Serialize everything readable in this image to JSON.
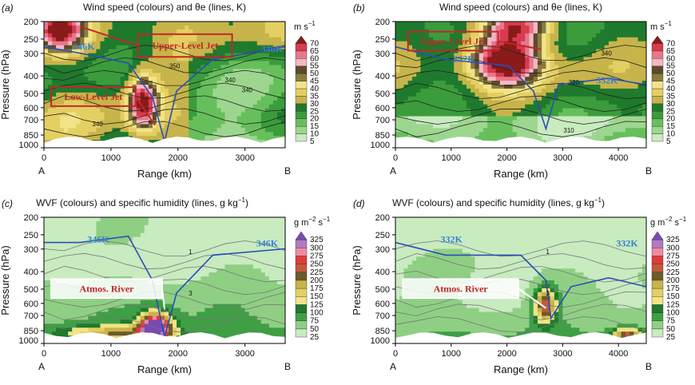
{
  "chart_data": [
    {
      "type": "heatmap",
      "panel_label": "(a)",
      "title": "Wind speed (colours) and θe (lines, K)",
      "xlabel": "Range (km)",
      "ylabel": "Pressure (hPa)",
      "xlim": [
        0,
        3600
      ],
      "x_ticks": [
        0,
        1000,
        2000,
        3000
      ],
      "ylim": [
        1000,
        200
      ],
      "y_ticks": [
        200,
        250,
        300,
        400,
        500,
        600,
        700,
        850,
        1000
      ],
      "y_scale": "log",
      "endpoints": [
        "A",
        "B"
      ],
      "colorbar": {
        "unit": "m s",
        "unit_exp": "−1",
        "levels": [
          5,
          10,
          15,
          20,
          25,
          30,
          35,
          40,
          45,
          50,
          55,
          60,
          65,
          70
        ]
      },
      "contour_labels": [
        "346K",
        "346K",
        "340",
        "340",
        "340",
        "350"
      ],
      "annotations": [
        "Upper-Level Jet",
        "Low-Level Jet"
      ]
    },
    {
      "type": "heatmap",
      "panel_label": "(b)",
      "title": "Wind speed (colours) and θe (lines, K)",
      "xlabel": "Range (km)",
      "ylabel": "Pressure (hPa)",
      "xlim": [
        0,
        4500
      ],
      "x_ticks": [
        0,
        1000,
        2000,
        3000,
        4000
      ],
      "ylim": [
        1000,
        200
      ],
      "y_ticks": [
        200,
        250,
        300,
        400,
        500,
        600,
        700,
        850,
        1000
      ],
      "y_scale": "log",
      "endpoints": [
        "A",
        "B"
      ],
      "colorbar": {
        "unit": "m s",
        "unit_exp": "−1",
        "levels": [
          5,
          10,
          15,
          20,
          25,
          30,
          35,
          40,
          45,
          50,
          55,
          60,
          65,
          70
        ]
      },
      "contour_labels": [
        "332K",
        "332K",
        "340",
        "320",
        "310"
      ],
      "annotations": [
        "Upper-Level Jet"
      ]
    },
    {
      "type": "heatmap",
      "panel_label": "(c)",
      "title": "WVF (colours) and specific humidity (lines, g kg",
      "title_exp": "−1",
      "xlabel": "Range (km)",
      "ylabel": "Pressure (hPa)",
      "xlim": [
        0,
        3600
      ],
      "x_ticks": [
        0,
        1000,
        2000,
        3000
      ],
      "ylim": [
        1000,
        200
      ],
      "y_ticks": [
        200,
        250,
        300,
        400,
        500,
        600,
        700,
        850,
        1000
      ],
      "y_scale": "log",
      "endpoints": [
        "A",
        "B"
      ],
      "colorbar": {
        "unit": "g m",
        "unit_exp": "−2",
        "unit_tail": " s",
        "unit_tail_exp": "−1",
        "levels": [
          25,
          50,
          75,
          100,
          125,
          150,
          175,
          200,
          225,
          250,
          275,
          300,
          325
        ]
      },
      "contour_labels": [
        "346K",
        "346K",
        "1",
        "3"
      ],
      "annotations": [
        "Atmos. River"
      ]
    },
    {
      "type": "heatmap",
      "panel_label": "(d)",
      "title": "WVF (colours) and specific humidity (lines, g kg",
      "title_exp": "−1",
      "xlabel": "Range (km)",
      "ylabel": "Pressure (hPa)",
      "xlim": [
        0,
        4500
      ],
      "x_ticks": [
        0,
        1000,
        2000,
        3000,
        4000
      ],
      "ylim": [
        1000,
        200
      ],
      "y_ticks": [
        200,
        250,
        300,
        400,
        500,
        600,
        700,
        850,
        1000
      ],
      "y_scale": "log",
      "endpoints": [
        "A",
        "B"
      ],
      "colorbar": {
        "unit": "g m",
        "unit_exp": "−2",
        "unit_tail": " s",
        "unit_tail_exp": "−1",
        "levels": [
          25,
          50,
          75,
          100,
          125,
          150,
          175,
          200,
          225,
          250,
          275,
          300,
          325
        ]
      },
      "contour_labels": [
        "332K",
        "332K",
        "1",
        "3"
      ],
      "annotations": [
        "Atmos. River"
      ]
    }
  ],
  "colors": {
    "wind_scale": [
      "#c8ebc0",
      "#9dd68f",
      "#67bf5c",
      "#3b9c3b",
      "#1f7a2d",
      "#c7b44a",
      "#e4cf63",
      "#f2e486",
      "#8a7b3f",
      "#5c4a2b",
      "#f3b8c3",
      "#e8778a",
      "#d93a4e",
      "#8b1a1a"
    ],
    "wvf_scale": [
      "#c8ebc0",
      "#8fcf84",
      "#3f9f45",
      "#1f7a2d",
      "#f2e486",
      "#e4cf63",
      "#c7b44a",
      "#6b5a2b",
      "#c25a3a",
      "#e23a3a",
      "#f08aa0",
      "#b07ac8",
      "#7a4ab0"
    ],
    "theta_line": "#2a4db8",
    "theta_label": "#3a7fd0",
    "annotation_text": "#c0282a",
    "annotation_box": "#c0282a"
  }
}
